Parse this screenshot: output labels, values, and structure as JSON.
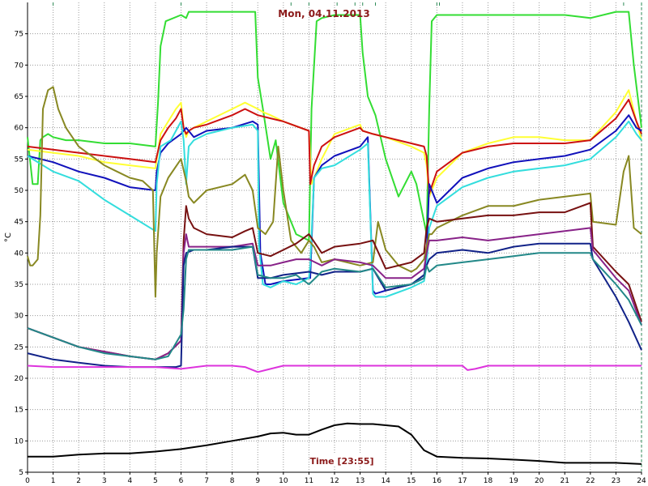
{
  "chart_data": {
    "type": "line",
    "title": "Mon, 04.11.2013",
    "xlabel": "Time [23:55]",
    "ylabel": "°C",
    "xlim": [
      0,
      24
    ],
    "ylim": [
      5,
      80
    ],
    "x_ticks": [
      0,
      1,
      2,
      3,
      4,
      5,
      6,
      7,
      8,
      9,
      10,
      11,
      12,
      13,
      14,
      15,
      16,
      17,
      18,
      19,
      20,
      21,
      22,
      23,
      24
    ],
    "y_ticks": [
      5,
      10,
      15,
      20,
      25,
      30,
      35,
      40,
      45,
      50,
      55,
      60,
      65,
      70,
      75
    ],
    "grid": true,
    "colors": {
      "grid": "#9a9a9a",
      "axis": "#000000",
      "title": "#8b1a1a",
      "xlabel": "#8b1a1a",
      "marker": "#2e8b57"
    },
    "series": [
      {
        "color": "#33dd33",
        "x": [
          0,
          0.2,
          0.4,
          0.5,
          0.6,
          0.8,
          1,
          1.5,
          2,
          3,
          4,
          5,
          5.1,
          5.2,
          5.4,
          6,
          6.2,
          6.3,
          6.6,
          7,
          8,
          8.9,
          9,
          9.2,
          9.5,
          9.7,
          10,
          10.5,
          11,
          11.1,
          11.3,
          11.5,
          12,
          13,
          13.1,
          13.3,
          13.6,
          14,
          14.5,
          15,
          15.2,
          15.6,
          15.7,
          15.8,
          16,
          17,
          18,
          19,
          20,
          21,
          22,
          23,
          23.1,
          23.5,
          23.7,
          24
        ],
        "y": [
          58.5,
          51,
          51,
          58,
          58.5,
          59,
          58.5,
          58,
          58,
          57.5,
          57.5,
          57,
          64,
          73,
          77,
          78,
          77.5,
          78.5,
          78.5,
          78.5,
          78.5,
          78.5,
          68,
          63,
          55,
          58,
          48,
          43,
          42,
          63,
          77,
          77.5,
          78,
          78,
          72,
          65,
          62,
          55,
          49,
          53,
          51,
          43,
          63,
          77,
          78,
          78,
          78,
          78,
          78,
          78,
          77.5,
          78.5,
          78.5,
          78.5,
          70,
          60
        ]
      },
      {
        "color": "#ffff33",
        "x": [
          0,
          1,
          2,
          3,
          4,
          5,
          5.2,
          5.5,
          5.8,
          6,
          6.1,
          6.2,
          6.3,
          6.5,
          7,
          8,
          8.5,
          9,
          9.2,
          9.5,
          10,
          11,
          11.1,
          11.5,
          12,
          13,
          13.1,
          13.5,
          14,
          15,
          15.5,
          15.6,
          15.7,
          16,
          17,
          18,
          19,
          20,
          21,
          22,
          23,
          23.5,
          23.8,
          24
        ],
        "y": [
          56.5,
          56,
          55.5,
          54.5,
          54,
          53.5,
          59,
          61,
          63,
          64,
          60,
          58.5,
          59.5,
          60,
          61,
          63,
          64,
          63,
          62.5,
          62,
          61,
          59.5,
          51,
          55,
          59,
          60.5,
          59.5,
          59,
          58.5,
          57,
          56,
          54,
          49,
          52,
          56,
          57.5,
          58.5,
          58.5,
          58,
          58,
          62.5,
          66,
          61,
          58
        ]
      },
      {
        "color": "#cc1111",
        "x": [
          0,
          1,
          2,
          3,
          4,
          5,
          5.2,
          5.5,
          5.8,
          6,
          6.1,
          6.2,
          6.3,
          6.5,
          7,
          8,
          8.5,
          9,
          9.5,
          10,
          11,
          11.05,
          11.2,
          11.5,
          12,
          13,
          13.1,
          13.5,
          14,
          15,
          15.5,
          15.6,
          15.7,
          16,
          17,
          18,
          19,
          20,
          21,
          22,
          23,
          23.5,
          23.8,
          24
        ],
        "y": [
          57,
          56.5,
          56,
          55.5,
          55,
          54.5,
          58,
          60,
          61.5,
          63,
          60,
          59,
          59.5,
          60,
          60.5,
          62,
          63,
          62,
          61.5,
          61,
          59.5,
          51,
          54,
          57,
          58.5,
          60,
          59.5,
          59,
          58.5,
          57.5,
          57,
          55.5,
          49.5,
          53,
          56,
          57,
          57.5,
          57.5,
          57.5,
          58,
          61.5,
          64.5,
          61,
          59
        ]
      },
      {
        "color": "#1111bb",
        "x": [
          0,
          1,
          2,
          3,
          4,
          5,
          5.05,
          5.2,
          5.5,
          6,
          6.2,
          6.5,
          7,
          8,
          8.8,
          9,
          9.1,
          9.3,
          9.5,
          10,
          11,
          11.05,
          11.2,
          11.5,
          12,
          13,
          13.3,
          13.5,
          13.6,
          14,
          15,
          15.5,
          15.6,
          15.7,
          16,
          17,
          18,
          19,
          20,
          21,
          22,
          23,
          23.5,
          23.8,
          24
        ],
        "y": [
          55.5,
          54.5,
          53,
          52,
          50.5,
          50,
          53,
          56,
          57.5,
          59,
          60,
          58.5,
          59.5,
          60,
          61,
          60.5,
          40,
          35,
          35,
          35.5,
          36,
          36,
          52,
          54,
          55.5,
          57,
          58.5,
          34,
          33.5,
          34,
          35,
          36,
          40,
          51,
          48,
          52,
          53.5,
          54.5,
          55,
          55.5,
          56.5,
          59.5,
          62,
          60,
          59.5
        ]
      },
      {
        "color": "#33dddd",
        "x": [
          0,
          1,
          2,
          3,
          4,
          5,
          5.05,
          5.2,
          5.6,
          6,
          6.1,
          6.2,
          6.3,
          6.5,
          7,
          8,
          8.8,
          9,
          9.05,
          9.2,
          9.5,
          10,
          10.5,
          11,
          11.05,
          11.2,
          11.5,
          12,
          13,
          13.3,
          13.5,
          13.6,
          14,
          15,
          15.5,
          15.6,
          15.7,
          16,
          17,
          18,
          19,
          20,
          21,
          22,
          23,
          23.5,
          23.8,
          24
        ],
        "y": [
          55.5,
          53,
          51.5,
          48.5,
          46,
          43.5,
          51,
          57,
          58,
          61,
          58,
          51,
          57,
          58,
          59,
          60,
          60.5,
          59.5,
          41,
          35,
          34.5,
          35.5,
          35,
          36,
          38,
          52,
          53.5,
          54,
          56.5,
          57.5,
          33.5,
          33,
          33,
          34.5,
          35.5,
          38,
          44,
          47.5,
          50.5,
          52,
          53,
          53.5,
          54,
          55,
          58.5,
          61,
          59,
          58
        ]
      },
      {
        "color": "#888822",
        "x": [
          0,
          0.1,
          0.2,
          0.4,
          0.5,
          0.6,
          0.8,
          1,
          1.2,
          1.5,
          2,
          3,
          3.5,
          4,
          4.5,
          4.9,
          5,
          5.05,
          5.2,
          5.5,
          6,
          6.2,
          6.3,
          6.5,
          7,
          8,
          8.5,
          8.8,
          9,
          9.3,
          9.6,
          9.8,
          10,
          10.3,
          10.7,
          11,
          11.2,
          11.5,
          12,
          13,
          13.5,
          13.7,
          14,
          14.5,
          15,
          15.2,
          15.5,
          15.7,
          15.8,
          16,
          17,
          18,
          19,
          20,
          21,
          22,
          22.1,
          23,
          23.3,
          23.5,
          23.7,
          24
        ],
        "y": [
          39.5,
          38,
          38,
          39,
          46,
          63,
          66,
          66.5,
          63,
          60,
          57,
          54,
          53,
          52,
          51.5,
          50,
          33,
          40,
          49,
          52,
          55,
          51.5,
          49,
          48,
          50,
          51,
          52.5,
          50,
          44,
          43,
          45,
          57,
          50,
          42,
          40,
          42,
          41,
          38.5,
          39,
          38,
          38.5,
          45,
          40.5,
          38,
          37,
          37.5,
          39,
          43,
          43,
          44,
          46,
          47.5,
          47.5,
          48.5,
          49,
          49.5,
          45,
          44.5,
          53,
          55.5,
          44,
          43
        ]
      },
      {
        "color": "#771111",
        "x": [
          0,
          2,
          4,
          5,
          5.5,
          6,
          6.1,
          6.2,
          6.3,
          6.5,
          7,
          8,
          8.5,
          8.8,
          9,
          9.5,
          10,
          10.5,
          11,
          11.5,
          12,
          13,
          13.5,
          14,
          15,
          15.5,
          15.6,
          15.7,
          16,
          17,
          18,
          19,
          20,
          21,
          22,
          22.1,
          23,
          23.5,
          24
        ],
        "y": [
          28,
          25,
          23.5,
          23,
          24,
          26,
          42,
          47.5,
          45.5,
          44,
          43,
          42.5,
          43.5,
          44,
          40,
          39.5,
          40.5,
          41.5,
          43,
          40,
          41,
          41.5,
          42,
          37.5,
          38.5,
          40,
          44,
          45.5,
          45,
          45.5,
          46,
          46,
          46.5,
          46.5,
          48,
          41,
          37,
          35,
          29
        ]
      },
      {
        "color": "#882288",
        "x": [
          0,
          2,
          4,
          5,
          5.5,
          6,
          6.1,
          6.2,
          6.3,
          6.5,
          7,
          8,
          8.8,
          9,
          9.5,
          10,
          10.5,
          11,
          11.5,
          12,
          13,
          13.5,
          14,
          15,
          15.5,
          15.6,
          15.7,
          16,
          17,
          18,
          19,
          20,
          21,
          22,
          22.1,
          23,
          23.5,
          24
        ],
        "y": [
          28,
          25,
          23.5,
          23,
          24,
          26,
          40,
          43,
          41,
          41,
          41,
          41,
          41.5,
          38,
          38,
          38.5,
          39,
          39,
          38,
          39,
          38.5,
          38,
          36,
          36,
          37.5,
          40,
          42,
          42,
          42.5,
          42,
          42.5,
          43,
          43.5,
          44,
          40.5,
          36,
          34,
          28.5
        ]
      },
      {
        "color": "#112288",
        "x": [
          0,
          1,
          2,
          3,
          4,
          5,
          5.8,
          6,
          6.1,
          6.2,
          6.5,
          7,
          8,
          8.8,
          9,
          9.5,
          10,
          11,
          11.5,
          12,
          13,
          13.5,
          14,
          15,
          15.5,
          15.6,
          15.7,
          16,
          17,
          18,
          19,
          20,
          21,
          22,
          22.1,
          23,
          23.5,
          24
        ],
        "y": [
          24,
          23,
          22.5,
          22,
          21.8,
          21.8,
          21.8,
          22,
          38,
          40,
          40.5,
          40.5,
          41,
          41,
          36,
          36,
          36.5,
          37,
          36.5,
          37,
          37,
          37.5,
          34,
          35,
          36.5,
          38,
          39,
          40,
          40.5,
          40,
          41,
          41.5,
          41.5,
          41.5,
          39,
          33,
          29,
          24.5
        ]
      },
      {
        "color": "#228888",
        "x": [
          0,
          1,
          2,
          3,
          4,
          5,
          5.5,
          6,
          6.1,
          6.2,
          6.3,
          6.5,
          7,
          8,
          8.8,
          9,
          9.5,
          10,
          10.5,
          11,
          11.5,
          12,
          13,
          13.5,
          14,
          15,
          15.5,
          15.6,
          15.7,
          16,
          17,
          18,
          19,
          20,
          21,
          22,
          22.1,
          23,
          23.5,
          24
        ],
        "y": [
          28,
          26.5,
          25,
          24,
          23.5,
          23,
          23.5,
          27,
          31,
          39,
          40.5,
          40.5,
          40.5,
          40.5,
          41,
          36.5,
          36,
          36,
          36.5,
          35,
          37,
          37.5,
          37,
          37.5,
          34.5,
          35,
          36,
          38,
          37,
          38,
          38.5,
          39,
          39.5,
          40,
          40,
          40,
          39,
          35,
          32.5,
          28.5
        ]
      },
      {
        "color": "#dd33dd",
        "x": [
          0,
          1,
          2,
          3,
          4,
          5,
          6,
          7,
          8,
          8.5,
          9,
          9.5,
          10,
          11,
          12,
          13,
          14,
          15,
          16,
          17,
          17.2,
          17.5,
          18,
          19,
          20,
          21,
          22,
          23,
          24
        ],
        "y": [
          22,
          21.8,
          21.8,
          21.8,
          21.8,
          21.8,
          21.5,
          22,
          22,
          21.8,
          21,
          21.5,
          22,
          22,
          22,
          22,
          22,
          22,
          22,
          22,
          21.3,
          21.5,
          22,
          22,
          22,
          22,
          22,
          22,
          22
        ]
      },
      {
        "color": "#000000",
        "x": [
          0,
          1,
          2,
          3,
          4,
          5,
          6,
          7,
          8,
          9,
          9.5,
          10,
          10.5,
          11,
          11.5,
          12,
          12.5,
          13,
          13.5,
          14,
          14.5,
          15,
          15.5,
          16,
          17,
          18,
          19,
          20,
          21,
          22,
          23,
          24
        ],
        "y": [
          7.5,
          7.5,
          7.8,
          8,
          8,
          8.3,
          8.7,
          9.3,
          10,
          10.7,
          11.2,
          11.3,
          11,
          11,
          11.8,
          12.5,
          12.8,
          12.7,
          12.7,
          12.5,
          12.3,
          11,
          8.5,
          7.5,
          7.3,
          7.2,
          7,
          6.8,
          6.5,
          6.5,
          6.5,
          6.3
        ]
      }
    ],
    "markers": [
      {
        "x": 1
      },
      {
        "x": 6
      },
      {
        "x": 10.3
      },
      {
        "x": 11
      },
      {
        "x": 12.1
      },
      {
        "x": 12.8
      },
      {
        "x": 13.1
      },
      {
        "x": 13.6
      },
      {
        "x": 16
      },
      {
        "x": 16.1
      },
      {
        "x": 23.3
      },
      {
        "x": 24
      }
    ]
  }
}
